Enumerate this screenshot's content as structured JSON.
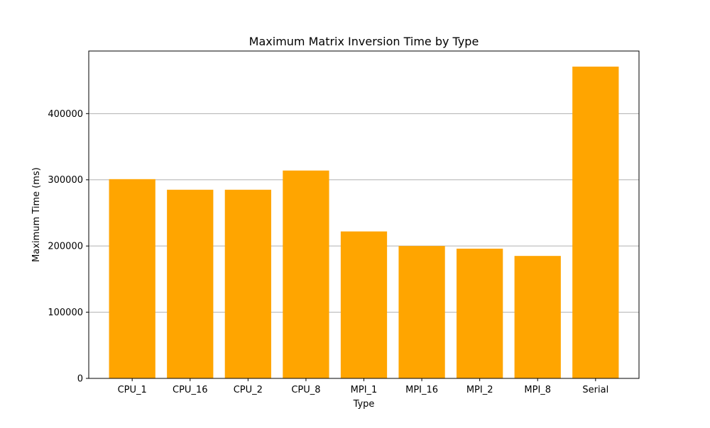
{
  "chart_data": {
    "type": "bar",
    "title": "Maximum Matrix Inversion Time by Type",
    "xlabel": "Type",
    "ylabel": "Maximum Time (ms)",
    "categories": [
      "CPU_1",
      "CPU_16",
      "CPU_2",
      "CPU_8",
      "MPI_1",
      "MPI_16",
      "MPI_2",
      "MPI_8",
      "Serial"
    ],
    "values": [
      301000,
      285000,
      285000,
      314000,
      222000,
      200000,
      196000,
      185000,
      471000
    ],
    "ylim": [
      0,
      494550
    ],
    "yticks": [
      0,
      100000,
      200000,
      300000,
      400000
    ],
    "ytick_labels": [
      "0",
      "100000",
      "200000",
      "300000",
      "400000"
    ],
    "grid": "y-major",
    "bar_color": "#FFA500",
    "grid_color": "#b0b0b0"
  }
}
